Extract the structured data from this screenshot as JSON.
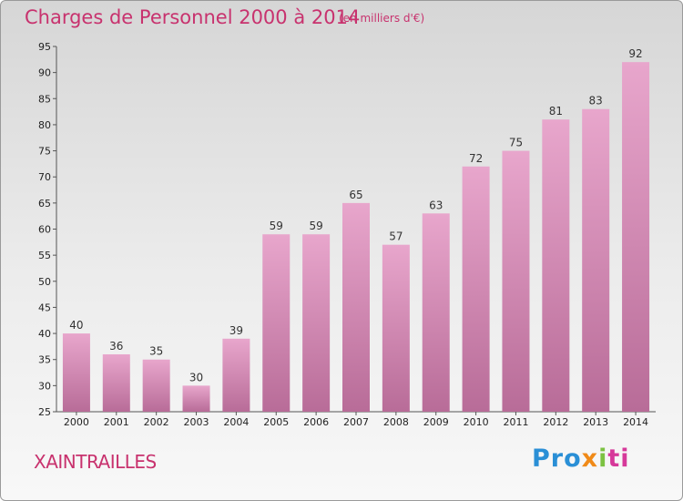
{
  "header": {
    "title": "Charges de Personnel 2000 à 2014",
    "subtitle": "(en milliers d'€)"
  },
  "footer": {
    "place": "XAINTRAILLES",
    "logo_text": "Proxiti"
  },
  "colors": {
    "title": "#c8326e",
    "bar_top": "#e8a6cc",
    "bar_bottom": "#b86c98"
  },
  "chart_data": {
    "type": "bar",
    "title": "Charges de Personnel 2000 à 2014",
    "subtitle": "(en milliers d'€)",
    "xlabel": "",
    "ylabel": "",
    "categories": [
      "2000",
      "2001",
      "2002",
      "2003",
      "2004",
      "2005",
      "2006",
      "2007",
      "2008",
      "2009",
      "2010",
      "2011",
      "2012",
      "2013",
      "2014"
    ],
    "values": [
      40,
      36,
      35,
      30,
      39,
      59,
      59,
      65,
      57,
      63,
      72,
      75,
      81,
      83,
      92
    ],
    "ylim": [
      25,
      95
    ],
    "yticks": [
      25,
      30,
      35,
      40,
      45,
      50,
      55,
      60,
      65,
      70,
      75,
      80,
      85,
      90,
      95
    ],
    "grid": false,
    "legend": "none"
  }
}
